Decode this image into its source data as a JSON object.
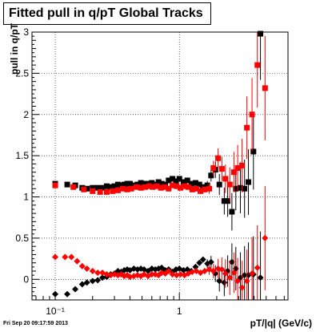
{
  "chart_data": {
    "type": "scatter",
    "title": "Fitted pull in q/pT  Global Tracks",
    "xlabel": "pT/|q| (GeV/c)",
    "ylabel": "pull in q/pT",
    "xscale": "log",
    "xlim": [
      0.065,
      7.5
    ],
    "ylim": [
      -0.25,
      3.0
    ],
    "grid": true,
    "x_ticks": [
      {
        "value": 0.1,
        "label": "10⁻¹"
      },
      {
        "value": 1,
        "label": "1"
      }
    ],
    "y_ticks": [
      0,
      0.5,
      1,
      1.5,
      2,
      2.5,
      3
    ],
    "y_tick_labels": [
      "0",
      "0.5",
      "1",
      "1.5",
      "2",
      "2.5",
      "3"
    ],
    "series": [
      {
        "color": "#000000",
        "marker": "square",
        "points": [
          [
            0.1,
            1.16
          ],
          [
            0.125,
            1.15
          ],
          [
            0.145,
            1.14
          ],
          [
            0.165,
            1.11
          ],
          [
            0.18,
            1.1
          ],
          [
            0.2,
            1.11
          ],
          [
            0.22,
            1.11
          ],
          [
            0.24,
            1.11
          ],
          [
            0.26,
            1.13
          ],
          [
            0.28,
            1.12
          ],
          [
            0.3,
            1.13
          ],
          [
            0.32,
            1.15
          ],
          [
            0.34,
            1.14
          ],
          [
            0.36,
            1.15
          ],
          [
            0.38,
            1.16
          ],
          [
            0.4,
            1.16
          ],
          [
            0.43,
            1.14
          ],
          [
            0.46,
            1.15
          ],
          [
            0.49,
            1.17
          ],
          [
            0.52,
            1.16
          ],
          [
            0.56,
            1.16
          ],
          [
            0.6,
            1.17
          ],
          [
            0.64,
            1.15
          ],
          [
            0.68,
            1.18
          ],
          [
            0.72,
            1.16
          ],
          [
            0.77,
            1.15
          ],
          [
            0.82,
            1.2
          ],
          [
            0.88,
            1.22
          ],
          [
            0.94,
            1.19
          ],
          [
            1.0,
            1.22
          ],
          [
            1.08,
            1.18
          ],
          [
            1.16,
            1.2
          ],
          [
            1.25,
            1.16
          ],
          [
            1.35,
            1.17
          ],
          [
            1.45,
            1.15
          ],
          [
            1.55,
            1.12
          ],
          [
            1.68,
            1.14
          ],
          [
            1.8,
            1.26
          ],
          [
            1.95,
            1.33
          ],
          [
            2.1,
            1.15
          ],
          [
            2.3,
            0.95
          ],
          [
            2.45,
            0.95
          ],
          [
            2.65,
            0.82
          ],
          [
            2.85,
            1.1
          ],
          [
            3.1,
            1.11
          ],
          [
            3.35,
            1.1
          ],
          [
            3.6,
            1.18
          ],
          [
            3.95,
            1.55
          ],
          [
            4.5,
            2.98
          ]
        ]
      },
      {
        "color": "#ff0000",
        "marker": "square",
        "points": [
          [
            0.1,
            1.14
          ],
          [
            0.14,
            1.12
          ],
          [
            0.17,
            1.09
          ],
          [
            0.2,
            1.07
          ],
          [
            0.23,
            1.06
          ],
          [
            0.26,
            1.06
          ],
          [
            0.29,
            1.07
          ],
          [
            0.32,
            1.08
          ],
          [
            0.35,
            1.1
          ],
          [
            0.38,
            1.09
          ],
          [
            0.41,
            1.1
          ],
          [
            0.45,
            1.12
          ],
          [
            0.49,
            1.11
          ],
          [
            0.53,
            1.12
          ],
          [
            0.57,
            1.13
          ],
          [
            0.61,
            1.12
          ],
          [
            0.66,
            1.13
          ],
          [
            0.71,
            1.11
          ],
          [
            0.76,
            1.12
          ],
          [
            0.82,
            1.1
          ],
          [
            0.88,
            1.14
          ],
          [
            0.95,
            1.13
          ],
          [
            1.02,
            1.11
          ],
          [
            1.1,
            1.13
          ],
          [
            1.18,
            1.12
          ],
          [
            1.27,
            1.09
          ],
          [
            1.37,
            1.1
          ],
          [
            1.48,
            1.07
          ],
          [
            1.6,
            1.09
          ],
          [
            1.74,
            1.1
          ],
          [
            1.88,
            1.35
          ],
          [
            2.05,
            1.47
          ],
          [
            2.2,
            1.34
          ],
          [
            2.35,
            1.22
          ],
          [
            2.55,
            1.15
          ],
          [
            2.75,
            1.3
          ],
          [
            2.95,
            1.35
          ],
          [
            3.2,
            1.38
          ],
          [
            3.5,
            1.84
          ],
          [
            3.85,
            2.0
          ],
          [
            4.25,
            2.6
          ],
          [
            4.9,
            2.32
          ]
        ]
      },
      {
        "color": "#000000",
        "marker": "diamond",
        "points": [
          [
            0.1,
            -0.18
          ],
          [
            0.125,
            -0.18
          ],
          [
            0.145,
            -0.12
          ],
          [
            0.165,
            -0.06
          ],
          [
            0.18,
            -0.04
          ],
          [
            0.2,
            -0.02
          ],
          [
            0.22,
            -0.01
          ],
          [
            0.24,
            0.02
          ],
          [
            0.26,
            0.03
          ],
          [
            0.28,
            0.06
          ],
          [
            0.3,
            0.07
          ],
          [
            0.32,
            0.1
          ],
          [
            0.34,
            0.09
          ],
          [
            0.36,
            0.11
          ],
          [
            0.38,
            0.12
          ],
          [
            0.4,
            0.11
          ],
          [
            0.43,
            0.13
          ],
          [
            0.46,
            0.12
          ],
          [
            0.49,
            0.13
          ],
          [
            0.52,
            0.12
          ],
          [
            0.56,
            0.1
          ],
          [
            0.6,
            0.13
          ],
          [
            0.64,
            0.12
          ],
          [
            0.68,
            0.13
          ],
          [
            0.72,
            0.14
          ],
          [
            0.77,
            0.11
          ],
          [
            0.82,
            0.12
          ],
          [
            0.88,
            0.09
          ],
          [
            0.94,
            0.12
          ],
          [
            1.0,
            0.13
          ],
          [
            1.08,
            0.11
          ],
          [
            1.16,
            0.12
          ],
          [
            1.25,
            0.1
          ],
          [
            1.35,
            0.15
          ],
          [
            1.45,
            0.2
          ],
          [
            1.55,
            0.24
          ],
          [
            1.68,
            0.19
          ],
          [
            1.8,
            0.21
          ],
          [
            1.95,
            0.07
          ],
          [
            2.1,
            -0.02
          ],
          [
            2.3,
            -0.04
          ],
          [
            2.45,
            0.1
          ],
          [
            2.65,
            0.21
          ],
          [
            2.85,
            0.13
          ],
          [
            3.1,
            0.02
          ],
          [
            3.35,
            0.05
          ],
          [
            3.6,
            0.05
          ],
          [
            3.95,
            0.06
          ],
          [
            4.5,
            0.02
          ]
        ]
      },
      {
        "color": "#ff0000",
        "marker": "diamond",
        "points": [
          [
            0.1,
            0.27
          ],
          [
            0.12,
            0.27
          ],
          [
            0.135,
            0.27
          ],
          [
            0.15,
            0.22
          ],
          [
            0.165,
            0.16
          ],
          [
            0.18,
            0.13
          ],
          [
            0.2,
            0.1
          ],
          [
            0.22,
            0.08
          ],
          [
            0.24,
            0.08
          ],
          [
            0.26,
            0.06
          ],
          [
            0.28,
            0.05
          ],
          [
            0.3,
            0.06
          ],
          [
            0.32,
            0.05
          ],
          [
            0.34,
            0.06
          ],
          [
            0.36,
            0.04
          ],
          [
            0.38,
            0.05
          ],
          [
            0.4,
            0.03
          ],
          [
            0.43,
            0.04
          ],
          [
            0.46,
            0.05
          ],
          [
            0.49,
            0.04
          ],
          [
            0.52,
            0.06
          ],
          [
            0.56,
            0.04
          ],
          [
            0.6,
            0.06
          ],
          [
            0.64,
            0.06
          ],
          [
            0.68,
            0.05
          ],
          [
            0.72,
            0.08
          ],
          [
            0.77,
            0.07
          ],
          [
            0.82,
            0.1
          ],
          [
            0.88,
            0.06
          ],
          [
            0.95,
            0.05
          ],
          [
            1.02,
            0.06
          ],
          [
            1.1,
            0.05
          ],
          [
            1.18,
            0.07
          ],
          [
            1.27,
            0.09
          ],
          [
            1.37,
            0.1
          ],
          [
            1.48,
            0.08
          ],
          [
            1.6,
            0.1
          ],
          [
            1.74,
            0.12
          ],
          [
            1.88,
            0.1
          ],
          [
            2.05,
            0.13
          ],
          [
            2.2,
            0.12
          ],
          [
            2.35,
            0.07
          ],
          [
            2.55,
            0.02
          ],
          [
            2.75,
            0.08
          ],
          [
            2.95,
            -0.02
          ],
          [
            3.2,
            -0.1
          ],
          [
            3.5,
            -0.02
          ],
          [
            3.85,
            0.07
          ],
          [
            4.25,
            0.14
          ],
          [
            4.9,
            0.5
          ]
        ]
      }
    ]
  },
  "footer": {
    "datestamp": "Fri Sep 20 09:17:59 2013"
  }
}
